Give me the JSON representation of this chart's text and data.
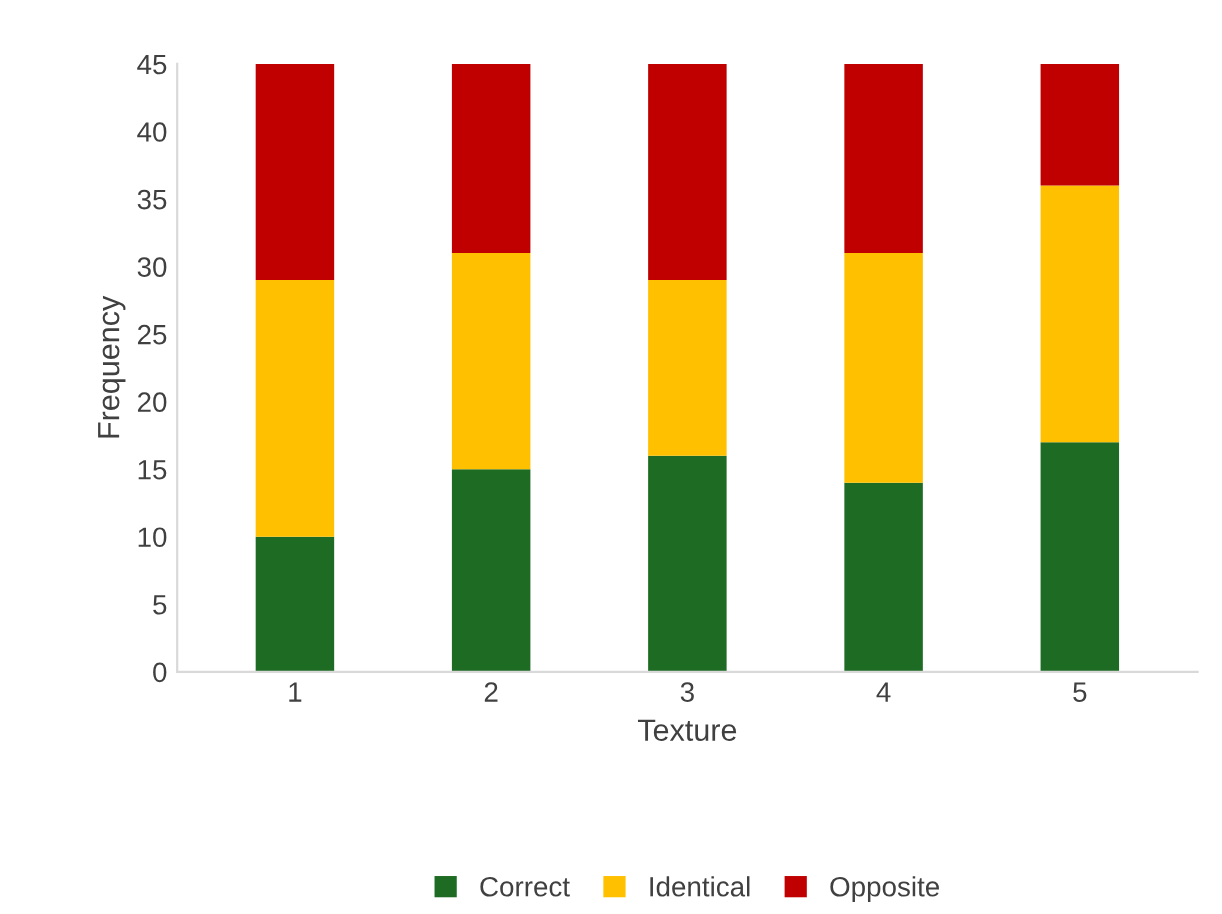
{
  "chart_data": {
    "type": "bar",
    "stacked": true,
    "xlabel": "Texture",
    "ylabel": "Frequency",
    "categories": [
      "1",
      "2",
      "3",
      "4",
      "5"
    ],
    "series": [
      {
        "name": "Correct",
        "color": "#1e6b24",
        "values": [
          10,
          15,
          16,
          14,
          17
        ]
      },
      {
        "name": "Identical",
        "color": "#ffc000",
        "values": [
          19,
          16,
          13,
          17,
          19
        ]
      },
      {
        "name": "Opposite",
        "color": "#c00000",
        "values": [
          16,
          14,
          16,
          14,
          9
        ]
      }
    ],
    "ylim": [
      0,
      45
    ],
    "yticks": [
      0,
      5,
      10,
      15,
      20,
      25,
      30,
      35,
      40,
      45
    ],
    "grid": false,
    "legend": "bottom"
  }
}
